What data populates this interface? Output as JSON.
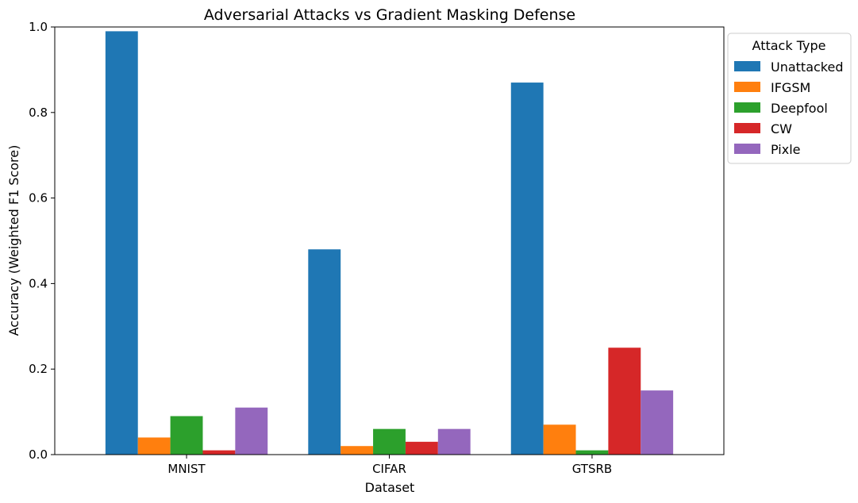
{
  "chart_data": {
    "type": "bar",
    "title": "Adversarial Attacks vs Gradient Masking Defense",
    "xlabel": "Dataset",
    "ylabel": "Accuracy (Weighted F1 Score)",
    "ylim": [
      0,
      1.0
    ],
    "yticks": [
      "0.0",
      "0.2",
      "0.4",
      "0.6",
      "0.8",
      "1.0"
    ],
    "categories": [
      "MNIST",
      "CIFAR",
      "GTSRB"
    ],
    "legend": {
      "title": "Attack Type",
      "placement": "outside-top-right"
    },
    "grid": false,
    "series": [
      {
        "name": "Unattacked",
        "color": "#1f77b4",
        "values": [
          0.99,
          0.48,
          0.87
        ]
      },
      {
        "name": "IFGSM",
        "color": "#ff7f0e",
        "values": [
          0.04,
          0.02,
          0.07
        ]
      },
      {
        "name": "Deepfool",
        "color": "#2ca02c",
        "values": [
          0.09,
          0.06,
          0.01
        ]
      },
      {
        "name": "CW",
        "color": "#d62728",
        "values": [
          0.01,
          0.03,
          0.25
        ]
      },
      {
        "name": "Pixle",
        "color": "#9467bd",
        "values": [
          0.11,
          0.06,
          0.15
        ]
      }
    ]
  }
}
